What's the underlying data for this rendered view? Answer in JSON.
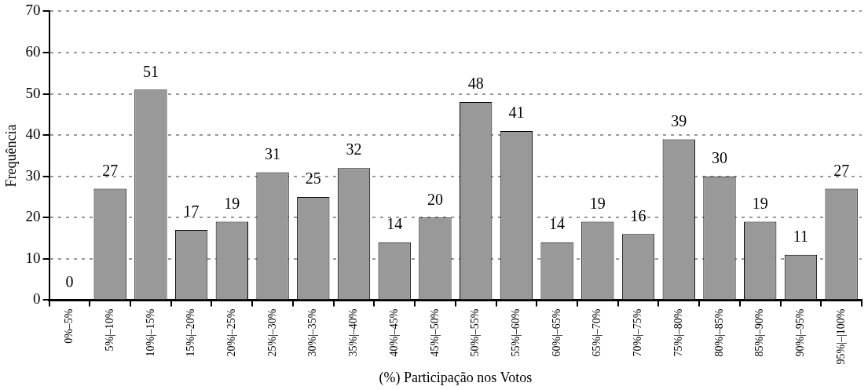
{
  "chart_data": {
    "type": "bar",
    "xlabel": "(%) Participação nos Votos",
    "ylabel": "Frequência",
    "categories": [
      "0%–5%",
      "5%|–10%",
      "10%|–15%",
      "15%|–20%",
      "20%|–25%",
      "25%|–30%",
      "30%|–35%",
      "35%|–40%",
      "40%|–45%",
      "45%|–50%",
      "50%|–55%",
      "55%|–60%",
      "60%|–65%",
      "65%|–70%",
      "70%|–75%",
      "75%|–80%",
      "80%|–85%",
      "85%|–90%",
      "90%|–95%",
      "95%|–|100%"
    ],
    "values": [
      0,
      27,
      51,
      17,
      19,
      31,
      25,
      32,
      14,
      20,
      48,
      41,
      14,
      19,
      16,
      39,
      30,
      19,
      11,
      27
    ],
    "color": "#999999",
    "ylim": [
      0,
      70
    ],
    "yticks": [
      0,
      10,
      20,
      30,
      40,
      50,
      60,
      70
    ],
    "grid": "y",
    "data_labels": true
  }
}
